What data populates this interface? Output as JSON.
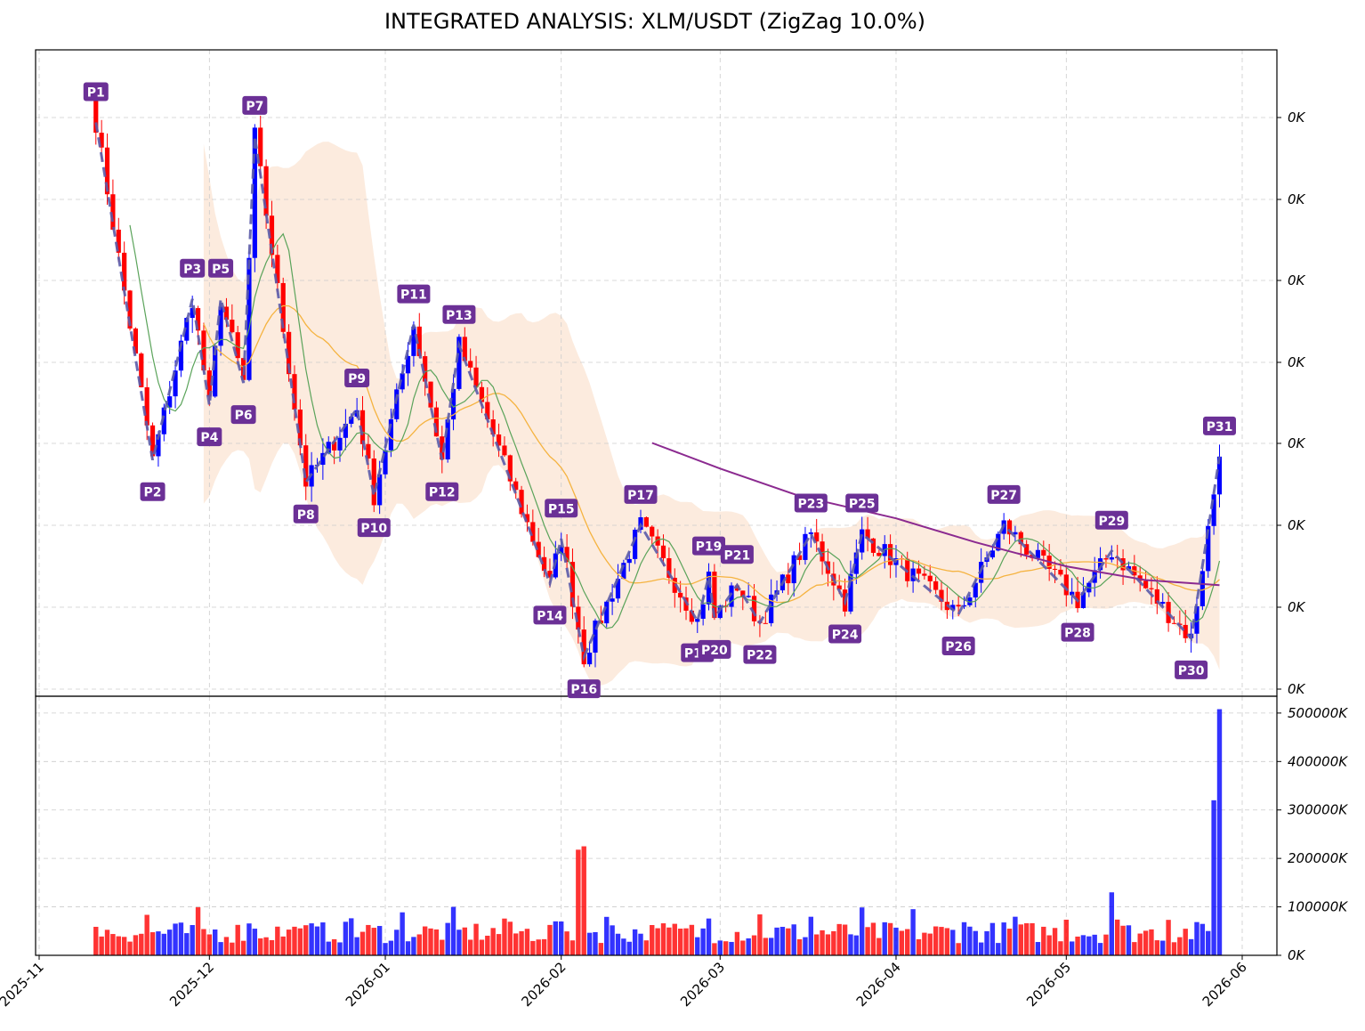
{
  "chart_data": [
    {
      "type": "candlestick",
      "title": "INTEGRATED ANALYSIS: XLM/USDT (ZigZag 10.0%)",
      "ytick_labels": [
        "0K",
        "0K",
        "0K",
        "0K",
        "0K",
        "0K",
        "0K",
        "0K"
      ],
      "x_ticks": [
        "2025-11",
        "2025-12",
        "2026-01",
        "2026-02",
        "2026-03",
        "2026-04",
        "2026-05",
        "2026-06"
      ],
      "x_tick_dates": [
        "2025-11-01",
        "2025-12-01",
        "2026-01-01",
        "2026-02-01",
        "2026-03-01",
        "2026-04-01",
        "2026-05-01",
        "2026-06-01"
      ],
      "colors": {
        "up": "#0000ff",
        "down": "#ff0000",
        "zigzag": "#5b5ba8",
        "pivot_label_bg": "#6b3096",
        "ma_fast": "#5aa35a",
        "ma_slow": "#f5b340",
        "ma_long": "#8b2a90",
        "band": "#fbe0cc"
      },
      "zigzag_pivots": [
        {
          "label": "P1",
          "date": "2025-11-11",
          "value": 0.47,
          "type": "high"
        },
        {
          "label": "P2",
          "date": "2025-11-21",
          "value": 0.273,
          "type": "low"
        },
        {
          "label": "P3",
          "date": "2025-11-28",
          "value": 0.367,
          "type": "high"
        },
        {
          "label": "P4",
          "date": "2025-12-01",
          "value": 0.305,
          "type": "low"
        },
        {
          "label": "P5",
          "date": "2025-12-03",
          "value": 0.367,
          "type": "high"
        },
        {
          "label": "P6",
          "date": "2025-12-07",
          "value": 0.318,
          "type": "low"
        },
        {
          "label": "P7",
          "date": "2025-12-09",
          "value": 0.462,
          "type": "high"
        },
        {
          "label": "P8",
          "date": "2025-12-18",
          "value": 0.26,
          "type": "low"
        },
        {
          "label": "P9",
          "date": "2025-12-27",
          "value": 0.303,
          "type": "high"
        },
        {
          "label": "P10",
          "date": "2025-12-30",
          "value": 0.252,
          "type": "low"
        },
        {
          "label": "P11",
          "date": "2026-01-06",
          "value": 0.352,
          "type": "high"
        },
        {
          "label": "P12",
          "date": "2026-01-11",
          "value": 0.273,
          "type": "low"
        },
        {
          "label": "P13",
          "date": "2026-01-14",
          "value": 0.34,
          "type": "high"
        },
        {
          "label": "P14",
          "date": "2026-01-30",
          "value": 0.201,
          "type": "low"
        },
        {
          "label": "P15",
          "date": "2026-02-01",
          "value": 0.227,
          "type": "high"
        },
        {
          "label": "P16",
          "date": "2026-02-05",
          "value": 0.158,
          "type": "low"
        },
        {
          "label": "P17",
          "date": "2026-02-15",
          "value": 0.235,
          "type": "high"
        },
        {
          "label": "P18",
          "date": "2026-02-25",
          "value": 0.179,
          "type": "low"
        },
        {
          "label": "P19",
          "date": "2026-02-27",
          "value": 0.205,
          "type": "high"
        },
        {
          "label": "P20",
          "date": "2026-02-28",
          "value": 0.181,
          "type": "low"
        },
        {
          "label": "P21",
          "date": "2026-03-04",
          "value": 0.2,
          "type": "high"
        },
        {
          "label": "P22",
          "date": "2026-03-08",
          "value": 0.178,
          "type": "low"
        },
        {
          "label": "P23",
          "date": "2026-03-17",
          "value": 0.23,
          "type": "high"
        },
        {
          "label": "P24",
          "date": "2026-03-23",
          "value": 0.19,
          "type": "low"
        },
        {
          "label": "P25",
          "date": "2026-03-26",
          "value": 0.23,
          "type": "high"
        },
        {
          "label": "P26",
          "date": "2026-04-12",
          "value": 0.183,
          "type": "low"
        },
        {
          "label": "P27",
          "date": "2026-04-20",
          "value": 0.235,
          "type": "high"
        },
        {
          "label": "P28",
          "date": "2026-05-03",
          "value": 0.191,
          "type": "low"
        },
        {
          "label": "P29",
          "date": "2026-05-09",
          "value": 0.22,
          "type": "high"
        },
        {
          "label": "P30",
          "date": "2026-05-23",
          "value": 0.169,
          "type": "low"
        },
        {
          "label": "P31",
          "date": "2026-05-28",
          "value": 0.275,
          "type": "high"
        }
      ],
      "ma_long_values": [
        {
          "date": "2026-02-17",
          "value": 0.283
        },
        {
          "date": "2026-03-01",
          "value": 0.268
        },
        {
          "date": "2026-03-15",
          "value": 0.252
        },
        {
          "date": "2026-04-01",
          "value": 0.239
        },
        {
          "date": "2026-04-15",
          "value": 0.225
        },
        {
          "date": "2026-05-01",
          "value": 0.211
        },
        {
          "date": "2026-05-15",
          "value": 0.203
        },
        {
          "date": "2026-05-28",
          "value": 0.2
        }
      ],
      "legend": "none",
      "grid": true
    },
    {
      "type": "bar",
      "ytick_labels": [
        "0K",
        "100000K",
        "200000K",
        "300000K",
        "400000K",
        "500000K"
      ],
      "ylim": [
        0,
        520000
      ],
      "notable_values": [
        {
          "date": "2026-02-04",
          "value": 218000
        },
        {
          "date": "2026-02-05",
          "value": 225000
        },
        {
          "date": "2026-05-09",
          "value": 130000
        },
        {
          "date": "2026-05-27",
          "value": 320000
        },
        {
          "date": "2026-05-28",
          "value": 508000
        }
      ],
      "grid": true
    }
  ]
}
